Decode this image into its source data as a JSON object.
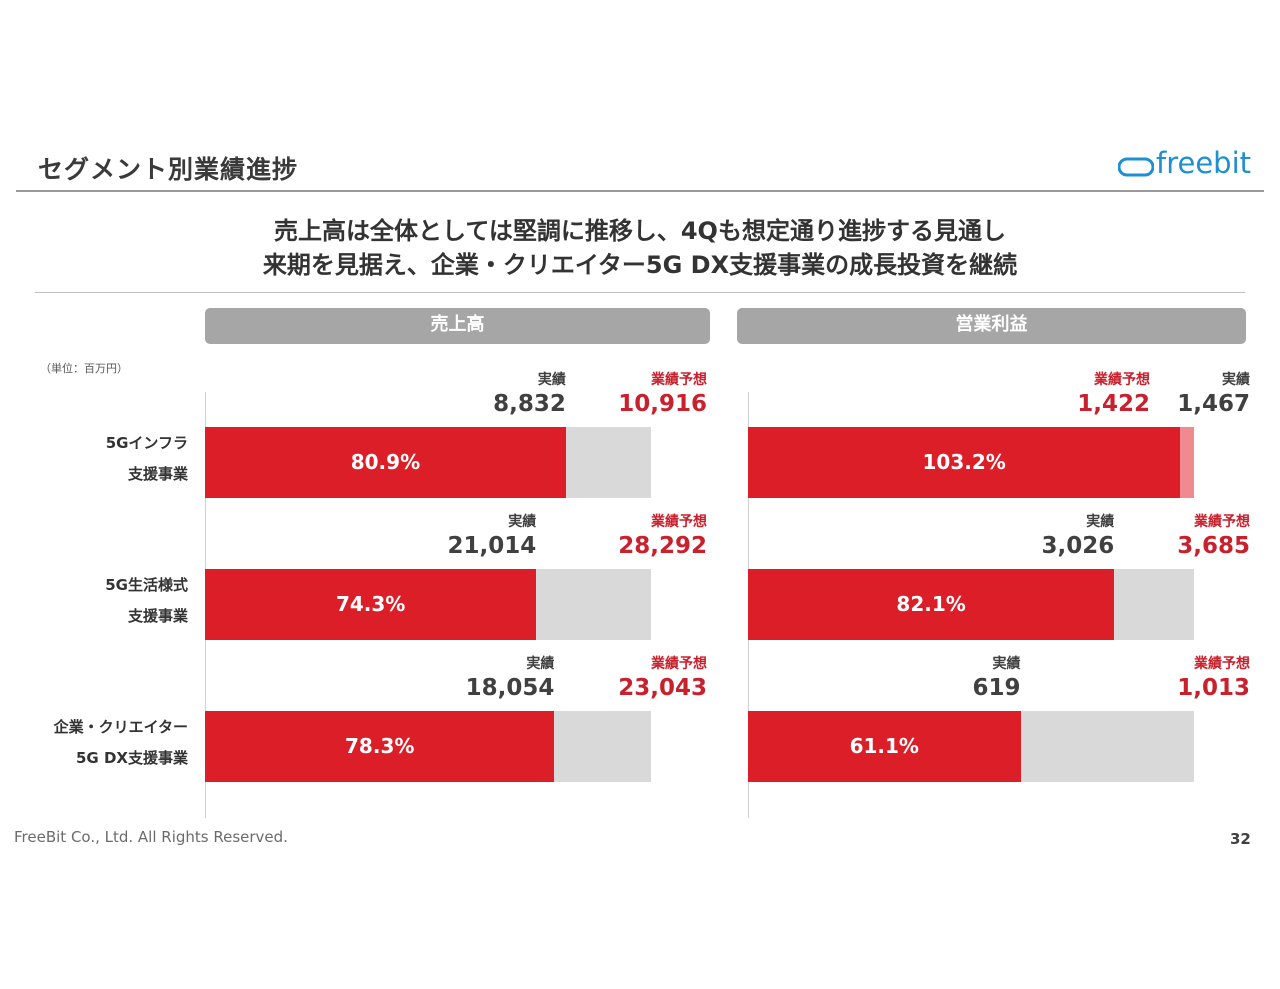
{
  "header": {
    "title": "セグメント別業績進捗",
    "logo_text": "freebit"
  },
  "headline": {
    "line1": "売上高は全体としては堅調に推移し、4Qも想定通り進捗する見通し",
    "line2": "来期を見据え、企業・クリエイター5G DX支援事業の成長投資を継続"
  },
  "unit_note": "（単位：百万円）",
  "footer": {
    "copyright": "FreeBit Co., Ltd. All Rights Reserved.",
    "page_number": "32"
  },
  "colors": {
    "actual_bar": "#dc1e28",
    "forecast_bar": "#d9d9d9",
    "overshoot_bar": "#ef8a8f",
    "forecast_text": "#c8202c",
    "header_panel": "#a6a6a6",
    "logo": "#1e8fd0"
  },
  "segments": [
    {
      "line1": "5Gインフラ",
      "line2": "支援事業"
    },
    {
      "line1": "5G生活様式",
      "line2": "支援事業"
    },
    {
      "line1": "企業・クリエイター",
      "line2": "5G DX支援事業"
    }
  ],
  "chart_data": [
    {
      "type": "bar",
      "title": "売上高",
      "categories": [
        "5Gインフラ支援事業",
        "5G生活様式支援事業",
        "企業・クリエイター5G DX支援事業"
      ],
      "series": [
        {
          "name": "実績",
          "values": [
            8832,
            21014,
            18054
          ],
          "labels": [
            "8,832",
            "21,014",
            "18,054"
          ]
        },
        {
          "name": "業績予想",
          "values": [
            10916,
            28292,
            23043
          ],
          "labels": [
            "10,916",
            "28,292",
            "23,043"
          ]
        }
      ],
      "progress_labels": [
        "80.9%",
        "74.3%",
        "78.3%"
      ],
      "progress": [
        80.9,
        74.3,
        78.3
      ]
    },
    {
      "type": "bar",
      "title": "営業利益",
      "categories": [
        "5Gインフラ支援事業",
        "5G生活様式支援事業",
        "企業・クリエイター5G DX支援事業"
      ],
      "series": [
        {
          "name": "実績",
          "values": [
            1467,
            3026,
            619
          ],
          "labels": [
            "1,467",
            "3,026",
            "619"
          ]
        },
        {
          "name": "業績予想",
          "values": [
            1422,
            3685,
            1013
          ],
          "labels": [
            "1,422",
            "3,685",
            "1,013"
          ]
        }
      ],
      "progress_labels": [
        "103.2%",
        "82.1%",
        "61.1%"
      ],
      "progress": [
        103.2,
        82.1,
        61.1
      ]
    }
  ]
}
